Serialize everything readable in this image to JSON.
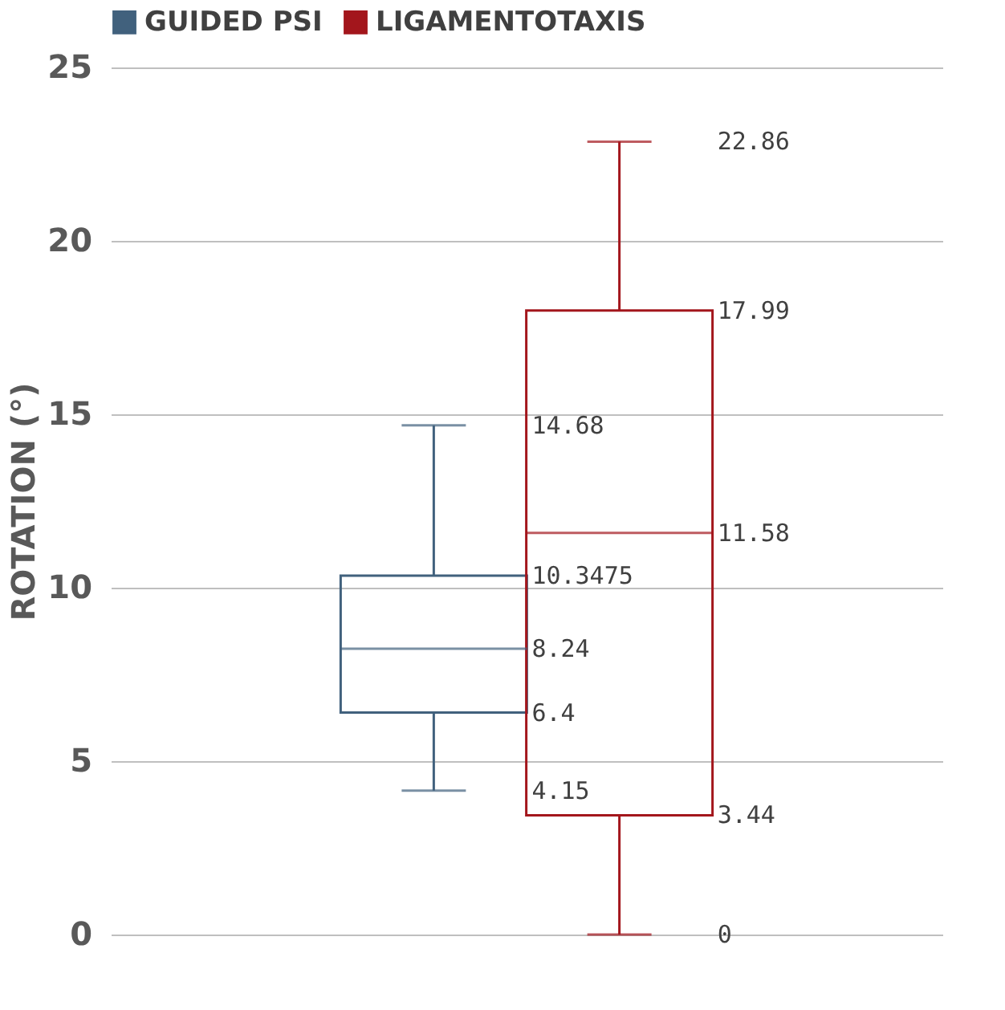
{
  "chart_data": {
    "type": "box",
    "categories": [
      null
    ],
    "ylabel": "ROTATION (°)",
    "ylim": [
      0,
      25
    ],
    "yticks": [
      0,
      5,
      10,
      15,
      20,
      25
    ],
    "grid": "y",
    "legend": "top",
    "tick_labels": "y",
    "series": [
      {
        "name": "GUIDED PSI",
        "color": "#41617d",
        "boxes": [
          {
            "low": 4.15,
            "q1": 6.4,
            "median": 8.24,
            "q3": 10.3475,
            "high": 14.68
          }
        ]
      },
      {
        "name": "LIGAMENTOTAXIS",
        "color": "#a3161c",
        "boxes": [
          {
            "low": 0,
            "q1": 3.44,
            "median": 11.58,
            "q3": 17.99,
            "high": 22.86
          }
        ]
      }
    ],
    "annotations": [
      "4.15",
      "6.4",
      "8.24",
      "10.3475",
      "14.68",
      "0",
      "3.44",
      "11.58",
      "17.99",
      "22.86"
    ]
  }
}
